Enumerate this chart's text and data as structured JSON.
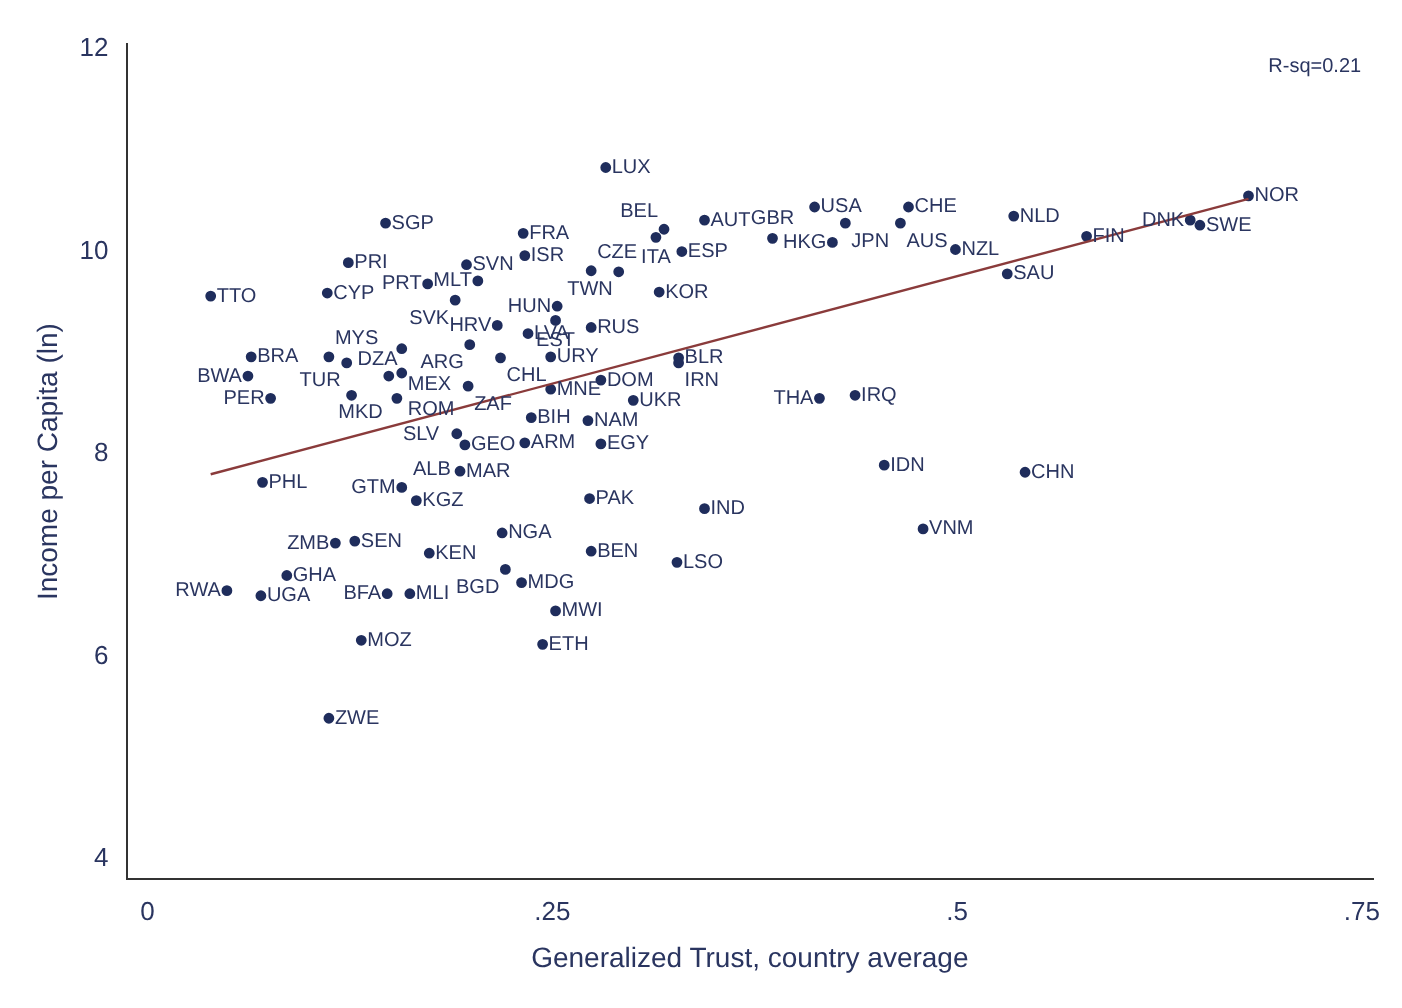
{
  "chart_data": {
    "type": "scatter",
    "xlabel": "Generalized Trust, country average",
    "ylabel": "Income per Capita (ln)",
    "xlim": [
      -0.013,
      0.757
    ],
    "ylim": [
      3.8,
      12.05
    ],
    "xticks": [
      {
        "value": 0,
        "label": "0"
      },
      {
        "value": 0.25,
        "label": ".25"
      },
      {
        "value": 0.5,
        "label": ".5"
      },
      {
        "value": 0.75,
        "label": ".75"
      }
    ],
    "yticks": [
      4,
      6,
      8,
      10,
      12
    ],
    "grid": false,
    "legend": false,
    "marker": "circle",
    "series": [
      {
        "type": "scatter",
        "color": "#1f2d5c",
        "x": [
          0.283,
          0.147,
          0.232,
          0.124,
          0.039,
          0.111,
          0.197,
          0.233,
          0.173,
          0.204,
          0.19,
          0.274,
          0.291,
          0.316,
          0.253,
          0.216,
          0.252,
          0.274,
          0.235,
          0.199,
          0.064,
          0.112,
          0.123,
          0.157,
          0.157,
          0.149,
          0.218,
          0.249,
          0.062,
          0.076,
          0.126,
          0.154,
          0.198,
          0.249,
          0.28,
          0.328,
          0.328,
          0.3,
          0.237,
          0.272,
          0.191,
          0.196,
          0.233,
          0.28,
          0.193,
          0.071,
          0.157,
          0.166,
          0.273,
          0.344,
          0.219,
          0.116,
          0.128,
          0.174,
          0.274,
          0.327,
          0.221,
          0.231,
          0.252,
          0.244,
          0.086,
          0.049,
          0.07,
          0.148,
          0.162,
          0.132,
          0.112,
          0.455,
          0.542,
          0.479,
          0.415,
          0.437,
          0.412,
          0.47,
          0.431,
          0.465,
          0.423,
          0.344,
          0.319,
          0.314,
          0.33,
          0.386,
          0.535,
          0.499,
          0.531,
          0.58,
          0.644,
          0.65,
          0.68
        ],
        "values": [
          10.83,
          10.28,
          10.18,
          9.89,
          9.56,
          9.59,
          9.87,
          9.96,
          9.68,
          9.71,
          9.52,
          9.81,
          9.8,
          9.6,
          9.46,
          9.27,
          9.32,
          9.25,
          9.19,
          9.08,
          8.96,
          8.96,
          8.9,
          9.04,
          8.8,
          8.77,
          8.95,
          8.96,
          8.77,
          8.55,
          8.58,
          8.55,
          8.67,
          8.64,
          8.73,
          8.95,
          8.9,
          8.53,
          8.36,
          8.33,
          8.2,
          8.09,
          8.11,
          8.1,
          7.83,
          7.72,
          7.67,
          7.54,
          7.56,
          7.46,
          7.22,
          7.12,
          7.14,
          7.02,
          7.04,
          6.93,
          6.86,
          6.73,
          6.45,
          6.12,
          6.8,
          6.65,
          6.6,
          6.62,
          6.62,
          6.16,
          5.39,
          7.89,
          7.82,
          7.26,
          8.55,
          8.58,
          10.44,
          10.44,
          10.28,
          10.28,
          10.09,
          10.31,
          10.22,
          10.14,
          10.0,
          10.13,
          10.35,
          10.02,
          9.78,
          10.15,
          10.31,
          10.26,
          10.55
        ]
      },
      {
        "type": "line",
        "color": "#8a3b3b",
        "marker": "none",
        "x": [
          0.039,
          0.68
        ],
        "values": [
          7.8,
          10.52
        ]
      }
    ],
    "annotations": [
      {
        "text": "LUX",
        "x": 0.283,
        "y": 10.83
      },
      {
        "text": "SGP",
        "x": 0.147,
        "y": 10.28
      },
      {
        "text": "FRA",
        "x": 0.232,
        "y": 10.18
      },
      {
        "text": "PRI",
        "x": 0.124,
        "y": 9.89
      },
      {
        "text": "TTO",
        "x": 0.039,
        "y": 9.56
      },
      {
        "text": "CYP",
        "x": 0.111,
        "y": 9.59
      },
      {
        "text": "SVN",
        "x": 0.197,
        "y": 9.87
      },
      {
        "text": "ISR",
        "x": 0.233,
        "y": 9.96
      },
      {
        "text": "PRT",
        "x": 0.173,
        "y": 9.68
      },
      {
        "text": "MLT",
        "x": 0.204,
        "y": 9.71
      },
      {
        "text": "SVK",
        "x": 0.19,
        "y": 9.52
      },
      {
        "text": "CZE",
        "x": 0.274,
        "y": 9.81
      },
      {
        "text": "TWN",
        "x": 0.291,
        "y": 9.8
      },
      {
        "text": "KOR",
        "x": 0.316,
        "y": 9.6
      },
      {
        "text": "HUN",
        "x": 0.253,
        "y": 9.46
      },
      {
        "text": "HRV",
        "x": 0.216,
        "y": 9.27
      },
      {
        "text": "EST",
        "x": 0.252,
        "y": 9.32
      },
      {
        "text": "RUS",
        "x": 0.274,
        "y": 9.25
      },
      {
        "text": "LVA",
        "x": 0.235,
        "y": 9.19
      },
      {
        "text": "ARG",
        "x": 0.199,
        "y": 9.08
      },
      {
        "text": "BRA",
        "x": 0.064,
        "y": 8.96
      },
      {
        "text": "MYS",
        "x": 0.112,
        "y": 8.96
      },
      {
        "text": "TUR",
        "x": 0.123,
        "y": 8.9
      },
      {
        "text": "MEX",
        "x": 0.157,
        "y": 9.04
      },
      {
        "text": "ROM",
        "x": 0.157,
        "y": 8.8
      },
      {
        "text": "MKD",
        "x": 0.149,
        "y": 8.77
      },
      {
        "text": "CHL",
        "x": 0.218,
        "y": 8.95
      },
      {
        "text": "URY",
        "x": 0.249,
        "y": 8.96
      },
      {
        "text": "BWA",
        "x": 0.062,
        "y": 8.77
      },
      {
        "text": "PER",
        "x": 0.076,
        "y": 8.55
      },
      {
        "text": "DZA",
        "x": 0.126,
        "y": 8.58
      },
      {
        "text": "SLV",
        "x": 0.154,
        "y": 8.55
      },
      {
        "text": "ZAF",
        "x": 0.198,
        "y": 8.67
      },
      {
        "text": "MNE",
        "x": 0.249,
        "y": 8.64
      },
      {
        "text": "DOM",
        "x": 0.28,
        "y": 8.73
      },
      {
        "text": "BLR",
        "x": 0.328,
        "y": 8.95
      },
      {
        "text": "IRN",
        "x": 0.328,
        "y": 8.9
      },
      {
        "text": "UKR",
        "x": 0.3,
        "y": 8.53
      },
      {
        "text": "BIH",
        "x": 0.237,
        "y": 8.36
      },
      {
        "text": "NAM",
        "x": 0.272,
        "y": 8.33
      },
      {
        "text": "ALB",
        "x": 0.191,
        "y": 8.2
      },
      {
        "text": "GEO",
        "x": 0.196,
        "y": 8.09
      },
      {
        "text": "ARM",
        "x": 0.233,
        "y": 8.11
      },
      {
        "text": "EGY",
        "x": 0.28,
        "y": 8.1
      },
      {
        "text": "MAR",
        "x": 0.193,
        "y": 7.83
      },
      {
        "text": "PHL",
        "x": 0.071,
        "y": 7.72
      },
      {
        "text": "GTM",
        "x": 0.157,
        "y": 7.67
      },
      {
        "text": "KGZ",
        "x": 0.166,
        "y": 7.54
      },
      {
        "text": "PAK",
        "x": 0.273,
        "y": 7.56
      },
      {
        "text": "IND",
        "x": 0.344,
        "y": 7.46
      },
      {
        "text": "NGA",
        "x": 0.219,
        "y": 7.22
      },
      {
        "text": "ZMB",
        "x": 0.116,
        "y": 7.12
      },
      {
        "text": "SEN",
        "x": 0.128,
        "y": 7.14
      },
      {
        "text": "KEN",
        "x": 0.174,
        "y": 7.02
      },
      {
        "text": "BEN",
        "x": 0.274,
        "y": 7.04
      },
      {
        "text": "LSO",
        "x": 0.327,
        "y": 6.93
      },
      {
        "text": "BGD",
        "x": 0.221,
        "y": 6.86
      },
      {
        "text": "MDG",
        "x": 0.231,
        "y": 6.73
      },
      {
        "text": "MWI",
        "x": 0.252,
        "y": 6.45
      },
      {
        "text": "ETH",
        "x": 0.244,
        "y": 6.12
      },
      {
        "text": "GHA",
        "x": 0.086,
        "y": 6.8
      },
      {
        "text": "RWA",
        "x": 0.049,
        "y": 6.65
      },
      {
        "text": "UGA",
        "x": 0.07,
        "y": 6.6
      },
      {
        "text": "BFA",
        "x": 0.148,
        "y": 6.62
      },
      {
        "text": "MLI",
        "x": 0.162,
        "y": 6.62
      },
      {
        "text": "MOZ",
        "x": 0.132,
        "y": 6.16
      },
      {
        "text": "ZWE",
        "x": 0.112,
        "y": 5.39
      },
      {
        "text": "IDN",
        "x": 0.455,
        "y": 7.89
      },
      {
        "text": "CHN",
        "x": 0.542,
        "y": 7.82
      },
      {
        "text": "VNM",
        "x": 0.479,
        "y": 7.26
      },
      {
        "text": "THA",
        "x": 0.415,
        "y": 8.55
      },
      {
        "text": "IRQ",
        "x": 0.437,
        "y": 8.58
      },
      {
        "text": "USA",
        "x": 0.412,
        "y": 10.44
      },
      {
        "text": "CHE",
        "x": 0.47,
        "y": 10.44
      },
      {
        "text": "JPN",
        "x": 0.431,
        "y": 10.28
      },
      {
        "text": "AUS",
        "x": 0.465,
        "y": 10.28
      },
      {
        "text": "HKG",
        "x": 0.423,
        "y": 10.09
      },
      {
        "text": "AUT",
        "x": 0.344,
        "y": 10.31
      },
      {
        "text": "BEL",
        "x": 0.319,
        "y": 10.22
      },
      {
        "text": "ITA",
        "x": 0.314,
        "y": 10.14
      },
      {
        "text": "ESP",
        "x": 0.33,
        "y": 10.0
      },
      {
        "text": "GBR",
        "x": 0.386,
        "y": 10.13
      },
      {
        "text": "NLD",
        "x": 0.535,
        "y": 10.35
      },
      {
        "text": "NZL",
        "x": 0.499,
        "y": 10.02
      },
      {
        "text": "SAU",
        "x": 0.531,
        "y": 9.78
      },
      {
        "text": "FIN",
        "x": 0.58,
        "y": 10.15
      },
      {
        "text": "DNK",
        "x": 0.644,
        "y": 10.31
      },
      {
        "text": "SWE",
        "x": 0.65,
        "y": 10.26
      },
      {
        "text": "NOR",
        "x": 0.68,
        "y": 10.55
      },
      "R-sq=0.21"
    ]
  }
}
